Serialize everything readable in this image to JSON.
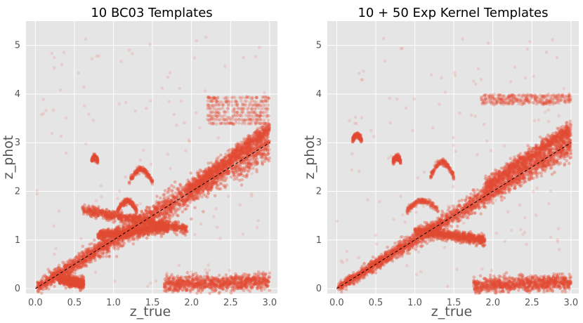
{
  "chart_data": [
    {
      "type": "scatter",
      "title": "10 BC03 Templates",
      "xlabel": "z_true",
      "ylabel": "z_phot",
      "xlim": [
        -0.12,
        3.1
      ],
      "ylim": [
        -0.1,
        5.5
      ],
      "xticks": [
        "0.0",
        "0.5",
        "1.0",
        "1.5",
        "2.0",
        "2.5",
        "3.0"
      ],
      "yticks": [
        "0",
        "1",
        "2",
        "3",
        "4",
        "5"
      ],
      "grid": true,
      "series": [
        {
          "marker_color": "#e24a33",
          "line": [
            [
              0.0,
              0.0
            ],
            [
              3.0,
              3.0
            ]
          ],
          "structures": [
            {
              "kind": "diagonal",
              "x": [
                0.02,
                3.0
              ],
              "spread": 0.15
            },
            {
              "kind": "spur",
              "x": [
                0.3,
                0.62
              ],
              "y": [
                0.2,
                0.1
              ]
            },
            {
              "kind": "ridge",
              "x": [
                0.6,
                1.95
              ],
              "y": [
                1.62,
                1.22
              ]
            },
            {
              "kind": "ridge",
              "x": [
                0.8,
                1.7
              ],
              "y": [
                1.1,
                1.25
              ]
            },
            {
              "kind": "blob",
              "x": [
                1.65,
                3.0
              ],
              "y": [
                0.08,
                0.14
              ]
            },
            {
              "kind": "blob",
              "x": [
                1.95,
                3.0
              ],
              "y": [
                2.0,
                3.3
              ]
            },
            {
              "kind": "island",
              "x": [
                0.72,
                0.8
              ],
              "y": [
                2.62,
                2.7
              ]
            },
            {
              "kind": "island",
              "x": [
                1.2,
                1.5
              ],
              "y": [
                2.2,
                2.45
              ]
            },
            {
              "kind": "streaks",
              "x": [
                2.2,
                3.0
              ],
              "y": [
                3.4,
                4.0
              ]
            },
            {
              "kind": "arc",
              "x": [
                1.05,
                1.3
              ],
              "y": [
                1.6,
                1.8
              ]
            }
          ]
        }
      ]
    },
    {
      "type": "scatter",
      "title": "10 + 50 Exp Kernel Templates",
      "xlabel": "z_true",
      "ylabel": "z_phot",
      "xlim": [
        -0.12,
        3.1
      ],
      "ylim": [
        -0.1,
        5.5
      ],
      "xticks": [
        "0.0",
        "0.5",
        "1.0",
        "1.5",
        "2.0",
        "2.5",
        "3.0"
      ],
      "yticks": [
        "0",
        "1",
        "2",
        "3",
        "4",
        "5"
      ],
      "grid": true,
      "series": [
        {
          "marker_color": "#e24a33",
          "line": [
            [
              0.0,
              0.0
            ],
            [
              3.0,
              3.0
            ]
          ],
          "structures": [
            {
              "kind": "diagonal",
              "x": [
                0.02,
                3.0
              ],
              "spread": 0.12
            },
            {
              "kind": "ridge",
              "x": [
                1.0,
                1.9
              ],
              "y": [
                1.2,
                1.0
              ]
            },
            {
              "kind": "blob",
              "x": [
                1.75,
                3.0
              ],
              "y": [
                0.05,
                0.14
              ]
            },
            {
              "kind": "blob",
              "x": [
                1.9,
                3.0
              ],
              "y": [
                2.1,
                3.3
              ]
            },
            {
              "kind": "island",
              "x": [
                0.2,
                0.32
              ],
              "y": [
                3.05,
                3.15
              ]
            },
            {
              "kind": "island",
              "x": [
                0.72,
                0.82
              ],
              "y": [
                2.6,
                2.7
              ]
            },
            {
              "kind": "streaks",
              "x": [
                1.85,
                3.0
              ],
              "y": [
                3.8,
                4.0
              ]
            },
            {
              "kind": "arc",
              "x": [
                0.9,
                1.3
              ],
              "y": [
                1.6,
                1.8
              ]
            },
            {
              "kind": "arc",
              "x": [
                1.2,
                1.5
              ],
              "y": [
                2.3,
                2.6
              ]
            }
          ]
        }
      ]
    }
  ]
}
